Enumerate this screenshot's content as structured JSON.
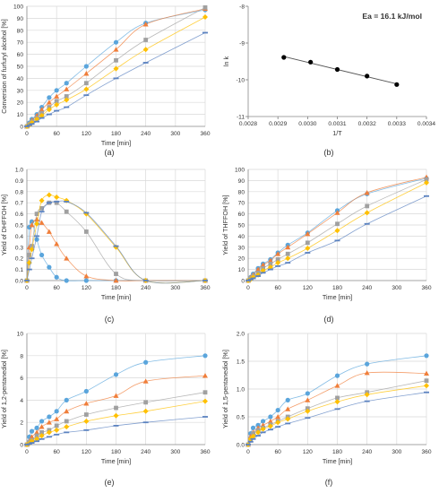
{
  "chart_data": [
    {
      "type": "scatter",
      "panel_label": "(a)",
      "xlabel": "Time [min]",
      "ylabel": "Conversion of furfuryl alcohol [%]",
      "xlim": [
        0,
        360
      ],
      "ylim": [
        0,
        100
      ],
      "xticks": [
        "0",
        "60",
        "120",
        "180",
        "240",
        "300",
        "360"
      ],
      "yticks": [
        "0",
        "10",
        "20",
        "30",
        "40",
        "50",
        "60",
        "70",
        "80",
        "90",
        "100"
      ],
      "grid": true,
      "series": [
        {
          "color": "#5aa5dc",
          "marker": "circle",
          "x": [
            0,
            5,
            10,
            20,
            30,
            45,
            60,
            80,
            120,
            180,
            240,
            360
          ],
          "y": [
            0,
            3,
            6,
            10,
            16,
            24,
            30,
            36,
            50,
            70,
            86,
            97
          ]
        },
        {
          "color": "#f07e3a",
          "marker": "triangle",
          "x": [
            0,
            5,
            10,
            20,
            30,
            45,
            60,
            80,
            120,
            180,
            240,
            360
          ],
          "y": [
            0,
            2,
            5,
            9,
            14,
            20,
            25,
            31,
            44,
            64,
            85,
            98
          ]
        },
        {
          "color": "#a0a0a0",
          "marker": "square",
          "x": [
            0,
            5,
            10,
            20,
            30,
            45,
            60,
            80,
            120,
            180,
            240,
            360
          ],
          "y": [
            0,
            2,
            4,
            7,
            11,
            16,
            21,
            25,
            36,
            55,
            72,
            99
          ]
        },
        {
          "color": "#ffc000",
          "marker": "diamond",
          "x": [
            0,
            5,
            10,
            20,
            30,
            45,
            60,
            80,
            120,
            180,
            240,
            360
          ],
          "y": [
            0,
            1,
            3,
            6,
            9,
            14,
            18,
            22,
            31,
            48,
            64,
            91
          ]
        },
        {
          "color": "#5b82c0",
          "marker": "dash",
          "x": [
            0,
            5,
            10,
            20,
            30,
            45,
            60,
            80,
            120,
            180,
            240,
            360
          ],
          "y": [
            0,
            1,
            2,
            4,
            7,
            10,
            13,
            16,
            26,
            40,
            53,
            78
          ]
        }
      ]
    },
    {
      "type": "scatter",
      "panel_label": "(b)",
      "xlabel": "1/T",
      "ylabel": "ln k",
      "xlim": [
        0.0028,
        0.0034
      ],
      "ylim": [
        -11,
        -8
      ],
      "xticks": [
        "0.0028",
        "0.0029",
        "0.0030",
        "0.0031",
        "0.0032",
        "0.0033",
        "0.0034"
      ],
      "yticks": [
        "-11",
        "-10",
        "-9",
        "-8"
      ],
      "annotation": "Ea = 16.1 kJ/mol",
      "grid": false,
      "series": [
        {
          "color": "#000000",
          "marker": "circle",
          "fit": "linear",
          "x": [
            0.00292,
            0.00301,
            0.0031,
            0.0032,
            0.0033
          ],
          "y": [
            -9.39,
            -9.52,
            -9.72,
            -9.9,
            -10.13
          ]
        }
      ]
    },
    {
      "type": "scatter",
      "panel_label": "(c)",
      "xlabel": "Time [min]",
      "ylabel": "Yield of DHFFOH [%]",
      "xlim": [
        0,
        360
      ],
      "ylim": [
        0,
        1
      ],
      "xticks": [
        "0",
        "60",
        "120",
        "180",
        "240",
        "300",
        "360"
      ],
      "yticks": [
        "0.0",
        "0.1",
        "0.2",
        "0.3",
        "0.4",
        "0.5",
        "0.6",
        "0.7",
        "0.8",
        "0.9",
        "1.0"
      ],
      "grid": true,
      "series": [
        {
          "color": "#5aa5dc",
          "marker": "circle",
          "x": [
            0,
            5,
            10,
            20,
            30,
            45,
            60,
            80,
            120,
            180,
            240,
            360
          ],
          "y": [
            0,
            0.48,
            0.53,
            0.37,
            0.23,
            0.12,
            0.03,
            0,
            0,
            0,
            0,
            0
          ]
        },
        {
          "color": "#f07e3a",
          "marker": "triangle",
          "x": [
            0,
            5,
            10,
            20,
            30,
            45,
            60,
            80,
            120,
            180,
            240,
            360
          ],
          "y": [
            0,
            0.3,
            0.5,
            0.55,
            0.52,
            0.44,
            0.33,
            0.2,
            0.04,
            0,
            0,
            0
          ]
        },
        {
          "color": "#a0a0a0",
          "marker": "square",
          "x": [
            0,
            5,
            10,
            20,
            30,
            45,
            60,
            80,
            120,
            180,
            240,
            360
          ],
          "y": [
            0,
            0.23,
            0.31,
            0.6,
            0.65,
            0.7,
            0.7,
            0.62,
            0.44,
            0.06,
            0,
            0
          ]
        },
        {
          "color": "#ffc000",
          "marker": "diamond",
          "x": [
            0,
            5,
            10,
            20,
            30,
            45,
            60,
            80,
            120,
            180,
            240,
            360
          ],
          "y": [
            0,
            0.16,
            0.28,
            0.51,
            0.72,
            0.77,
            0.75,
            0.72,
            0.6,
            0.3,
            0,
            0
          ]
        },
        {
          "color": "#5b82c0",
          "marker": "dash",
          "x": [
            0,
            5,
            10,
            20,
            30,
            45,
            60,
            80,
            120,
            180,
            240,
            360
          ],
          "y": [
            0,
            0.1,
            0.2,
            0.4,
            0.62,
            0.7,
            0.71,
            0.71,
            0.61,
            0.31,
            0,
            0
          ]
        }
      ]
    },
    {
      "type": "scatter",
      "panel_label": "(d)",
      "xlabel": "Time [min]",
      "ylabel": "Yield of THFFOH [%]",
      "xlim": [
        0,
        360
      ],
      "ylim": [
        0,
        100
      ],
      "xticks": [
        "0",
        "60",
        "120",
        "180",
        "240",
        "300",
        "360"
      ],
      "yticks": [
        "0",
        "10",
        "20",
        "30",
        "40",
        "50",
        "60",
        "70",
        "80",
        "90",
        "100"
      ],
      "grid": true,
      "series": [
        {
          "color": "#5aa5dc",
          "marker": "circle",
          "x": [
            0,
            5,
            10,
            20,
            30,
            45,
            60,
            80,
            120,
            180,
            240,
            360
          ],
          "y": [
            0,
            3,
            6,
            11,
            15,
            19,
            25,
            32,
            43,
            63,
            78,
            92
          ]
        },
        {
          "color": "#f07e3a",
          "marker": "triangle",
          "x": [
            0,
            5,
            10,
            20,
            30,
            45,
            60,
            80,
            120,
            180,
            240,
            360
          ],
          "y": [
            0,
            3,
            5,
            10,
            14,
            18,
            24,
            30,
            42,
            61,
            79,
            93
          ]
        },
        {
          "color": "#a0a0a0",
          "marker": "square",
          "x": [
            0,
            5,
            10,
            20,
            30,
            45,
            60,
            80,
            120,
            180,
            240,
            360
          ],
          "y": [
            0,
            2,
            4,
            7,
            11,
            15,
            19,
            24,
            34,
            51,
            67,
            91
          ]
        },
        {
          "color": "#ffc000",
          "marker": "diamond",
          "x": [
            0,
            5,
            10,
            20,
            30,
            45,
            60,
            80,
            120,
            180,
            240,
            360
          ],
          "y": [
            0,
            1,
            3,
            5,
            9,
            12,
            16,
            20,
            29,
            45,
            61,
            88
          ]
        },
        {
          "color": "#5b82c0",
          "marker": "dash",
          "x": [
            0,
            5,
            10,
            20,
            30,
            45,
            60,
            80,
            120,
            180,
            240,
            360
          ],
          "y": [
            0,
            1,
            2,
            4,
            7,
            10,
            13,
            16,
            25,
            36,
            51,
            76
          ]
        }
      ]
    },
    {
      "type": "scatter",
      "panel_label": "(e)",
      "xlabel": "Time [min]",
      "ylabel": "Yield of 1,2-pentanediol [%]",
      "xlim": [
        0,
        360
      ],
      "ylim": [
        0,
        10
      ],
      "xticks": [
        "0",
        "60",
        "120",
        "180",
        "240",
        "300",
        "360"
      ],
      "yticks": [
        "0",
        "2",
        "4",
        "6",
        "8",
        "10"
      ],
      "grid": true,
      "series": [
        {
          "color": "#5aa5dc",
          "marker": "circle",
          "x": [
            0,
            5,
            10,
            20,
            30,
            45,
            60,
            80,
            120,
            180,
            240,
            360
          ],
          "y": [
            0,
            0.7,
            1.2,
            1.5,
            2.1,
            2.5,
            3.0,
            4.0,
            4.8,
            6.3,
            7.4,
            8.0
          ]
        },
        {
          "color": "#f07e3a",
          "marker": "triangle",
          "x": [
            0,
            5,
            10,
            20,
            30,
            45,
            60,
            80,
            120,
            180,
            240,
            360
          ],
          "y": [
            0,
            0.3,
            0.7,
            1.1,
            1.6,
            2.0,
            2.3,
            3.0,
            3.7,
            4.4,
            5.7,
            6.2
          ]
        },
        {
          "color": "#a0a0a0",
          "marker": "square",
          "x": [
            0,
            5,
            10,
            20,
            30,
            45,
            60,
            80,
            120,
            180,
            240,
            360
          ],
          "y": [
            0,
            0.2,
            0.4,
            0.8,
            1.1,
            1.3,
            1.7,
            2.1,
            2.7,
            3.3,
            3.8,
            4.7
          ]
        },
        {
          "color": "#ffc000",
          "marker": "diamond",
          "x": [
            0,
            5,
            10,
            20,
            30,
            45,
            60,
            80,
            120,
            180,
            240,
            360
          ],
          "y": [
            0,
            0.1,
            0.3,
            0.5,
            0.8,
            1.1,
            1.3,
            1.6,
            2.1,
            2.6,
            3.0,
            3.9
          ]
        },
        {
          "color": "#5b82c0",
          "marker": "dash",
          "x": [
            0,
            5,
            10,
            20,
            30,
            45,
            60,
            80,
            120,
            180,
            240,
            360
          ],
          "y": [
            0,
            0.05,
            0.15,
            0.3,
            0.5,
            0.7,
            0.9,
            1.1,
            1.3,
            1.7,
            2.0,
            2.5
          ]
        }
      ]
    },
    {
      "type": "scatter",
      "panel_label": "(f)",
      "xlabel": "Time [min]",
      "ylabel": "Yield of 1,5-pentanediol [%]",
      "xlim": [
        0,
        360
      ],
      "ylim": [
        0,
        2
      ],
      "xticks": [
        "0",
        "60",
        "120",
        "180",
        "240",
        "300",
        "360"
      ],
      "yticks": [
        "0.0",
        "0.5",
        "1.0",
        "1.5",
        "2.0"
      ],
      "grid": true,
      "series": [
        {
          "color": "#5aa5dc",
          "marker": "circle",
          "x": [
            0,
            5,
            10,
            20,
            30,
            45,
            60,
            80,
            120,
            180,
            240,
            360
          ],
          "y": [
            0,
            0.2,
            0.3,
            0.35,
            0.42,
            0.5,
            0.62,
            0.8,
            0.92,
            1.24,
            1.45,
            1.6
          ]
        },
        {
          "color": "#f07e3a",
          "marker": "triangle",
          "x": [
            0,
            5,
            10,
            20,
            30,
            45,
            60,
            80,
            120,
            180,
            240,
            360
          ],
          "y": [
            0,
            0.15,
            0.22,
            0.3,
            0.35,
            0.42,
            0.5,
            0.64,
            0.8,
            1.06,
            1.29,
            1.28
          ]
        },
        {
          "color": "#a0a0a0",
          "marker": "square",
          "x": [
            0,
            5,
            10,
            20,
            30,
            45,
            60,
            80,
            120,
            180,
            240,
            360
          ],
          "y": [
            0,
            0.1,
            0.2,
            0.26,
            0.3,
            0.36,
            0.42,
            0.5,
            0.65,
            0.84,
            0.94,
            1.15
          ]
        },
        {
          "color": "#ffc000",
          "marker": "diamond",
          "x": [
            0,
            5,
            10,
            20,
            30,
            45,
            60,
            80,
            120,
            180,
            240,
            360
          ],
          "y": [
            0,
            0.1,
            0.15,
            0.22,
            0.28,
            0.33,
            0.4,
            0.46,
            0.6,
            0.77,
            0.9,
            1.06
          ]
        },
        {
          "color": "#5b82c0",
          "marker": "dash",
          "x": [
            0,
            5,
            10,
            20,
            30,
            45,
            60,
            80,
            120,
            180,
            240,
            360
          ],
          "y": [
            0,
            0.05,
            0.1,
            0.16,
            0.22,
            0.27,
            0.32,
            0.38,
            0.48,
            0.64,
            0.78,
            0.94
          ]
        }
      ]
    }
  ]
}
